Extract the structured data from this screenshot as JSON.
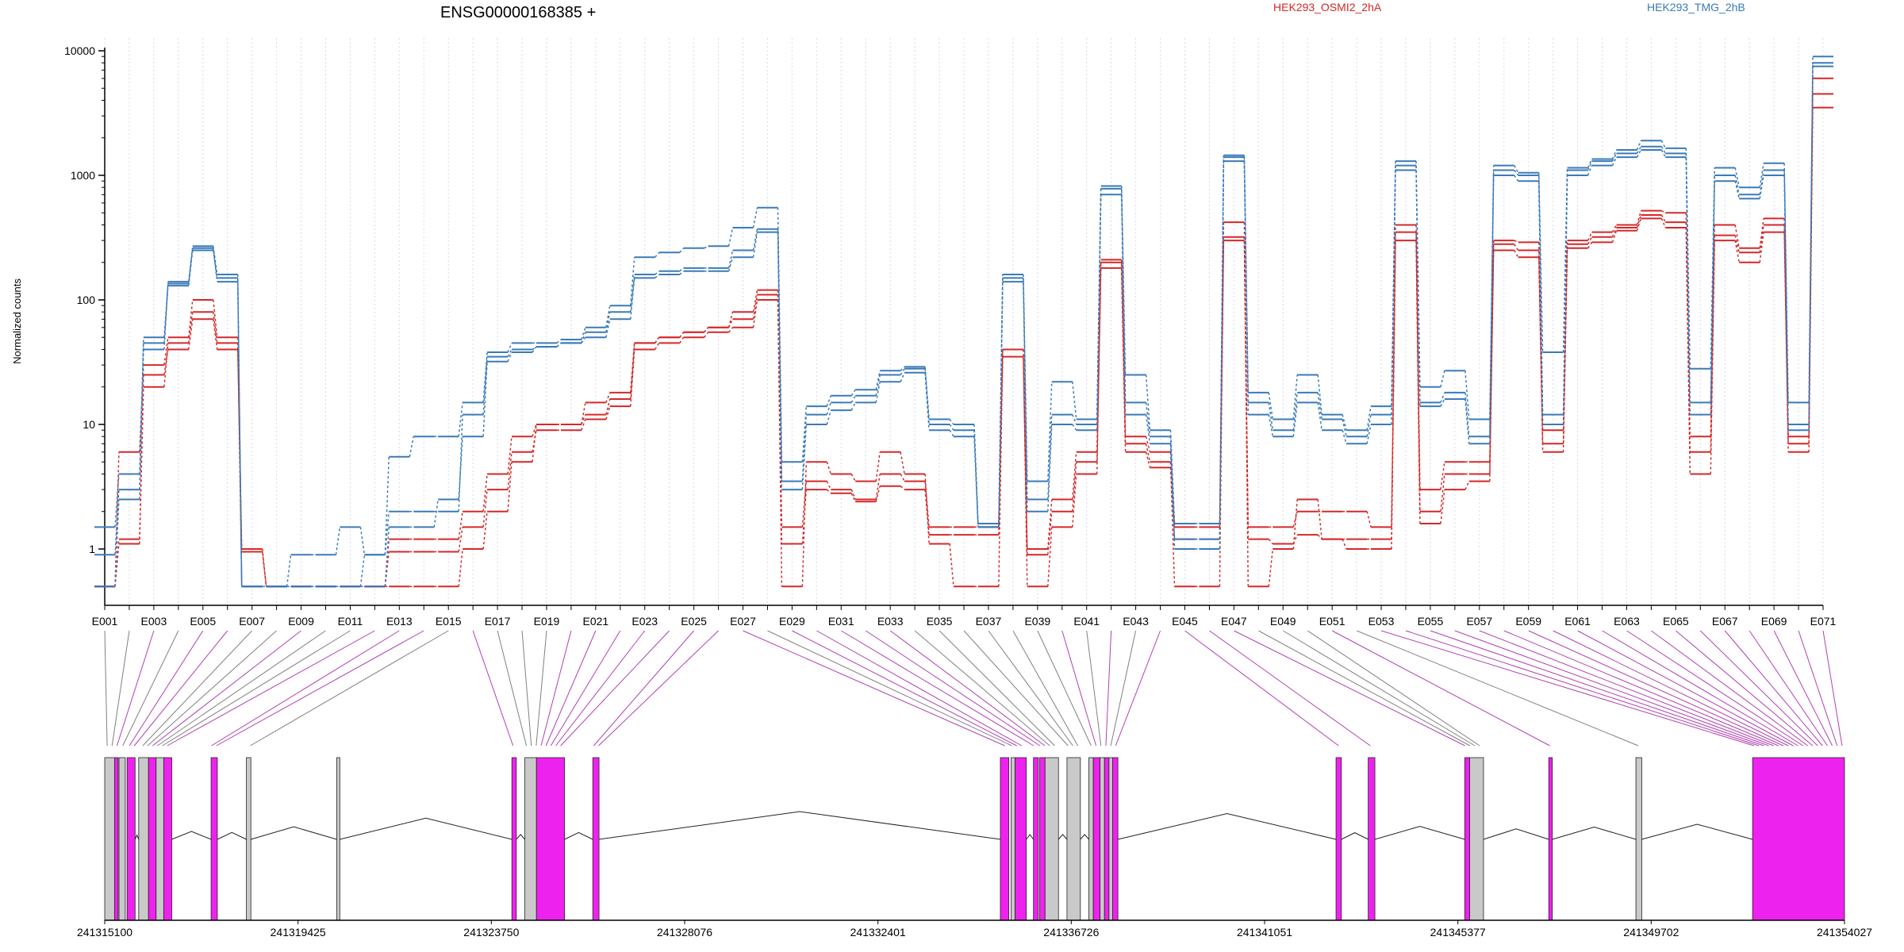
{
  "chart_data": {
    "type": "line",
    "title": "ENSG00000168385 +",
    "ylabel": "Normalized counts",
    "yscale": "log",
    "ylim": [
      0.35,
      12000
    ],
    "yticks": [
      1,
      10,
      100,
      1000,
      10000
    ],
    "ytick_labels": [
      "1",
      "10",
      "100",
      "1000",
      "10000"
    ],
    "legend": [
      {
        "name": "HEK293_OSMI2_2hA",
        "color": "#d62728"
      },
      {
        "name": "HEK293_TMG_2hB",
        "color": "#3a7ab8"
      }
    ],
    "categories": [
      "E001",
      "E002",
      "E003",
      "E004",
      "E005",
      "E006",
      "E007",
      "E008",
      "E009",
      "E010",
      "E011",
      "E012",
      "E013",
      "E014",
      "E015",
      "E016",
      "E017",
      "E018",
      "E019",
      "E020",
      "E021",
      "E022",
      "E023",
      "E024",
      "E025",
      "E026",
      "E027",
      "E028",
      "E029",
      "E030",
      "E031",
      "E032",
      "E033",
      "E034",
      "E035",
      "E036",
      "E037",
      "E038",
      "E039",
      "E040",
      "E041",
      "E042",
      "E043",
      "E044",
      "E045",
      "E046",
      "E047",
      "E048",
      "E049",
      "E050",
      "E051",
      "E052",
      "E053",
      "E054",
      "E055",
      "E056",
      "E057",
      "E058",
      "E059",
      "E060",
      "E061",
      "E062",
      "E063",
      "E064",
      "E065",
      "E066",
      "E067",
      "E068",
      "E069",
      "E070",
      "E071"
    ],
    "x_tick_labels": [
      "E001",
      "E003",
      "E005",
      "E007",
      "E009",
      "E011",
      "E013",
      "E015",
      "E017",
      "E019",
      "E021",
      "E023",
      "E025",
      "E027",
      "E029",
      "E031",
      "E033",
      "E035",
      "E037",
      "E039",
      "E041",
      "E043",
      "E045",
      "E047",
      "E049",
      "E051",
      "E053",
      "E055",
      "E057",
      "E059",
      "E061",
      "E063",
      "E065",
      "E067",
      "E069",
      "E071"
    ],
    "series": [
      {
        "name": "HEK293_OSMI2_2hA",
        "color": "#d62728",
        "values": [
          0.5,
          1.2,
          25,
          40,
          70,
          40,
          1,
          0.5,
          0.5,
          0.5,
          0.5,
          0.5,
          1.2,
          1.2,
          1.2,
          2,
          4,
          8,
          10,
          10,
          12,
          16,
          45,
          50,
          55,
          60,
          70,
          110,
          1.5,
          3.5,
          3,
          2.5,
          4,
          3.5,
          1.5,
          1.5,
          1.5,
          40,
          1,
          2.5,
          6,
          200,
          8,
          6,
          1.5,
          1.5,
          320,
          1.5,
          1.5,
          2,
          2,
          2,
          1.5,
          350,
          2,
          4,
          4,
          280,
          250,
          7,
          280,
          320,
          380,
          480,
          420,
          6,
          330,
          240,
          400,
          7,
          4500
        ]
      },
      {
        "name": "HEK293_OSMI2_2hA",
        "color": "#d62728",
        "values": [
          0.5,
          1.1,
          20,
          45,
          80,
          45,
          0.95,
          0.5,
          0.5,
          0.5,
          0.5,
          0.5,
          0.95,
          0.95,
          0.95,
          1.5,
          3,
          6,
          9,
          9,
          11,
          14,
          40,
          45,
          50,
          55,
          60,
          100,
          1.1,
          3,
          2.8,
          2.4,
          3.2,
          3,
          1.3,
          1.3,
          1.3,
          35,
          0.9,
          2,
          5,
          180,
          6,
          4.5,
          1.2,
          1.2,
          300,
          1.2,
          1.1,
          1.3,
          1.2,
          1.2,
          1.2,
          300,
          1.6,
          3,
          3.5,
          250,
          220,
          6,
          260,
          290,
          360,
          450,
          380,
          4,
          300,
          200,
          350,
          6,
          3500
        ]
      },
      {
        "name": "HEK293_OSMI2_2hA",
        "color": "#d62728",
        "values": [
          0.5,
          6,
          30,
          50,
          100,
          50,
          0.5,
          0.5,
          0.5,
          0.5,
          0.5,
          0.5,
          0.5,
          0.5,
          0.5,
          1,
          2,
          5,
          10,
          10,
          15,
          18,
          45,
          50,
          55,
          60,
          80,
          120,
          0.5,
          5,
          4,
          3.5,
          6,
          4,
          1.1,
          0.5,
          0.5,
          40,
          0.5,
          1.5,
          4,
          210,
          7,
          5,
          0.5,
          0.5,
          420,
          0.5,
          1,
          2.5,
          1.2,
          1,
          1,
          400,
          3,
          5,
          5,
          300,
          290,
          9,
          300,
          350,
          400,
          520,
          500,
          8,
          400,
          260,
          450,
          8,
          6000
        ]
      },
      {
        "name": "HEK293_TMG_2hB",
        "color": "#3a7ab8",
        "values": [
          1.5,
          4,
          45,
          130,
          250,
          150,
          0.5,
          0.5,
          0.9,
          0.9,
          1.5,
          0.9,
          2,
          2,
          2,
          12,
          35,
          40,
          42,
          45,
          55,
          80,
          160,
          170,
          180,
          180,
          250,
          370,
          3.5,
          12,
          15,
          17,
          25,
          28,
          10,
          9,
          1.5,
          150,
          2.5,
          12,
          10,
          780,
          15,
          8,
          1.2,
          1.2,
          1400,
          15,
          9,
          18,
          11,
          8,
          12,
          1200,
          15,
          18,
          8,
          1100,
          1000,
          12,
          1100,
          1300,
          1500,
          1700,
          1500,
          15,
          1000,
          700,
          1100,
          10,
          8000
        ]
      },
      {
        "name": "HEK293_TMG_2hB",
        "color": "#3a7ab8",
        "values": [
          0.9,
          3,
          40,
          140,
          260,
          140,
          0.5,
          0.5,
          0.5,
          0.5,
          0.5,
          0.5,
          1.5,
          1.5,
          2.5,
          8,
          32,
          38,
          42,
          45,
          50,
          70,
          150,
          160,
          170,
          170,
          220,
          350,
          3,
          10,
          13,
          15,
          22,
          26,
          9,
          8,
          1.5,
          140,
          2,
          10,
          9,
          700,
          12,
          7,
          1,
          1,
          1300,
          12,
          8,
          15,
          9,
          7,
          10,
          1100,
          14,
          16,
          7,
          1000,
          900,
          10,
          1000,
          1200,
          1400,
          1600,
          1400,
          12,
          900,
          650,
          1000,
          9,
          7500
        ]
      },
      {
        "name": "HEK293_TMG_2hB",
        "color": "#3a7ab8",
        "values": [
          0.5,
          2.5,
          50,
          135,
          270,
          160,
          0.5,
          0.5,
          0.5,
          0.5,
          0.5,
          0.9,
          5.5,
          8,
          8,
          15,
          38,
          45,
          45,
          48,
          60,
          90,
          220,
          240,
          260,
          270,
          380,
          550,
          5,
          14,
          17,
          19,
          27,
          29,
          11,
          10,
          1.6,
          160,
          3.5,
          22,
          11,
          820,
          25,
          9,
          1.6,
          1.6,
          1450,
          18,
          11,
          25,
          12,
          9,
          14,
          1300,
          20,
          27,
          11,
          1200,
          1050,
          38,
          1150,
          1350,
          1600,
          1900,
          1650,
          28,
          1150,
          800,
          1250,
          15,
          9000
        ]
      }
    ],
    "gene_model": {
      "coordinate_labels": [
        "241315100",
        "241319425",
        "241323750",
        "241328076",
        "241332401",
        "241336726",
        "241341051",
        "241345377",
        "241349702",
        "241354027"
      ],
      "coord_start": 241315100,
      "coord_end": 241354027,
      "exons": [
        {
          "start": 241315100,
          "end": 241315320,
          "color": "#c9c9c9"
        },
        {
          "start": 241315320,
          "end": 241315400,
          "color": "#ee22ee"
        },
        {
          "start": 241315420,
          "end": 241315560,
          "color": "#c9c9c9"
        },
        {
          "start": 241315600,
          "end": 241315780,
          "color": "#ee22ee"
        },
        {
          "start": 241315860,
          "end": 241316080,
          "color": "#c9c9c9"
        },
        {
          "start": 241316080,
          "end": 241316250,
          "color": "#ee22ee"
        },
        {
          "start": 241316250,
          "end": 241316420,
          "color": "#c9c9c9"
        },
        {
          "start": 241316420,
          "end": 241316600,
          "color": "#ee22ee"
        },
        {
          "start": 241317480,
          "end": 241317620,
          "color": "#ee22ee"
        },
        {
          "start": 241318270,
          "end": 241318370,
          "color": "#c9c9c9"
        },
        {
          "start": 241320290,
          "end": 241320360,
          "color": "#c9c9c9"
        },
        {
          "start": 241324210,
          "end": 241324310,
          "color": "#ee22ee"
        },
        {
          "start": 241324500,
          "end": 241324760,
          "color": "#c9c9c9"
        },
        {
          "start": 241324760,
          "end": 241325390,
          "color": "#ee22ee"
        },
        {
          "start": 241326020,
          "end": 241326160,
          "color": "#ee22ee"
        },
        {
          "start": 241335140,
          "end": 241335330,
          "color": "#ee22ee"
        },
        {
          "start": 241335380,
          "end": 241335470,
          "color": "#c9c9c9"
        },
        {
          "start": 241335470,
          "end": 241335720,
          "color": "#ee22ee"
        },
        {
          "start": 241335880,
          "end": 241335990,
          "color": "#ee22ee"
        },
        {
          "start": 241336020,
          "end": 241336140,
          "color": "#ee22ee"
        },
        {
          "start": 241336140,
          "end": 241336440,
          "color": "#c9c9c9"
        },
        {
          "start": 241336630,
          "end": 241336930,
          "color": "#c9c9c9"
        },
        {
          "start": 241337120,
          "end": 241337220,
          "color": "#c9c9c9"
        },
        {
          "start": 241337220,
          "end": 241337370,
          "color": "#ee22ee"
        },
        {
          "start": 241337370,
          "end": 241337470,
          "color": "#c9c9c9"
        },
        {
          "start": 241337470,
          "end": 241337570,
          "color": "#ee22ee"
        },
        {
          "start": 241337570,
          "end": 241337650,
          "color": "#c9c9c9"
        },
        {
          "start": 241337650,
          "end": 241337770,
          "color": "#ee22ee"
        },
        {
          "start": 241342650,
          "end": 241342770,
          "color": "#ee22ee"
        },
        {
          "start": 241343370,
          "end": 241343520,
          "color": "#ee22ee"
        },
        {
          "start": 241345530,
          "end": 241345640,
          "color": "#ee22ee"
        },
        {
          "start": 241345640,
          "end": 241345950,
          "color": "#c9c9c9"
        },
        {
          "start": 241347410,
          "end": 241347490,
          "color": "#ee22ee"
        },
        {
          "start": 241349360,
          "end": 241349490,
          "color": "#c9c9c9"
        },
        {
          "start": 241351970,
          "end": 241354027,
          "color": "#ee22ee"
        }
      ]
    }
  }
}
